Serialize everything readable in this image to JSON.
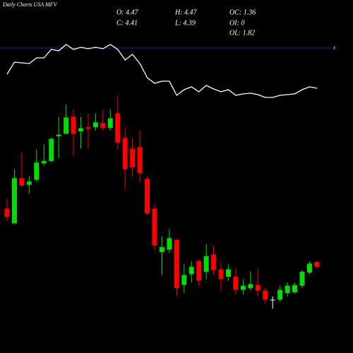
{
  "chart_data": {
    "type": "candlestick",
    "title": "Daily Charts USA MFV",
    "info": [
      "O: 4.47",
      "H: 4.47",
      "OC: 1.36",
      "C: 4.41",
      "L: 4.39",
      "OI: 0",
      "OL: 1.82"
    ],
    "ylim": [
      3.5,
      7.5
    ],
    "up_color": "#00dd00",
    "down_color": "#ff0000",
    "flat_color": "#ffffff",
    "open": [
      5.12,
      4.94,
      5.49,
      5.41,
      5.47,
      5.67,
      5.7,
      6.0,
      6.03,
      6.24,
      6.06,
      6.11,
      6.11,
      6.16,
      6.1,
      6.28,
      5.98,
      5.85,
      5.87,
      5.48,
      5.12,
      4.59,
      4.62,
      4.74,
      4.19,
      4.32,
      4.48,
      4.35,
      4.56,
      4.38,
      4.29,
      4.29,
      4.13,
      4.15,
      4.19,
      4.12,
      4.01,
      4.01,
      4.09,
      4.1,
      4.18,
      4.34,
      4.47
    ],
    "high": [
      5.24,
      5.6,
      5.81,
      5.51,
      5.84,
      5.9,
      5.98,
      6.24,
      6.39,
      6.33,
      6.24,
      6.28,
      6.28,
      6.33,
      6.33,
      6.5,
      6.11,
      5.98,
      6.07,
      5.51,
      5.17,
      4.78,
      4.87,
      4.75,
      4.44,
      4.48,
      4.5,
      4.69,
      4.67,
      4.46,
      4.44,
      4.39,
      4.26,
      4.35,
      4.39,
      4.15,
      4.05,
      4.18,
      4.22,
      4.22,
      4.37,
      4.48,
      4.47
    ],
    "low": [
      4.97,
      4.93,
      5.38,
      5.3,
      5.44,
      5.64,
      5.68,
      5.73,
      6.03,
      5.77,
      5.85,
      5.85,
      6.07,
      6.07,
      6.07,
      5.84,
      5.36,
      5.51,
      5.44,
      5.04,
      4.61,
      4.31,
      4.58,
      4.05,
      4.09,
      4.22,
      4.17,
      4.26,
      4.31,
      4.13,
      4.24,
      4.07,
      4.07,
      4.12,
      4.05,
      3.96,
      3.9,
      3.98,
      4.05,
      4.08,
      4.15,
      4.32,
      4.39
    ],
    "close": [
      5.02,
      5.49,
      5.4,
      5.45,
      5.68,
      5.7,
      5.97,
      6.02,
      6.23,
      6.03,
      6.1,
      6.09,
      6.17,
      6.1,
      6.22,
      5.92,
      5.6,
      5.62,
      5.55,
      5.06,
      4.67,
      4.65,
      4.76,
      4.15,
      4.31,
      4.41,
      4.24,
      4.54,
      4.37,
      4.26,
      4.38,
      4.13,
      4.18,
      4.2,
      4.12,
      4.01,
      4.01,
      4.13,
      4.18,
      4.19,
      4.35,
      4.45,
      4.41
    ],
    "overlay": {
      "color": "#ffffff",
      "ylim": [
        0,
        100
      ],
      "values": [
        35,
        52,
        51,
        50,
        58,
        58,
        70,
        68,
        77,
        70,
        73,
        71,
        73,
        71,
        77,
        70,
        55,
        63,
        50,
        30,
        22,
        25,
        25,
        5,
        13,
        17,
        10,
        19,
        14,
        10,
        13,
        5,
        7,
        8,
        6,
        2,
        2,
        5,
        6,
        7,
        13,
        17,
        15
      ]
    }
  }
}
